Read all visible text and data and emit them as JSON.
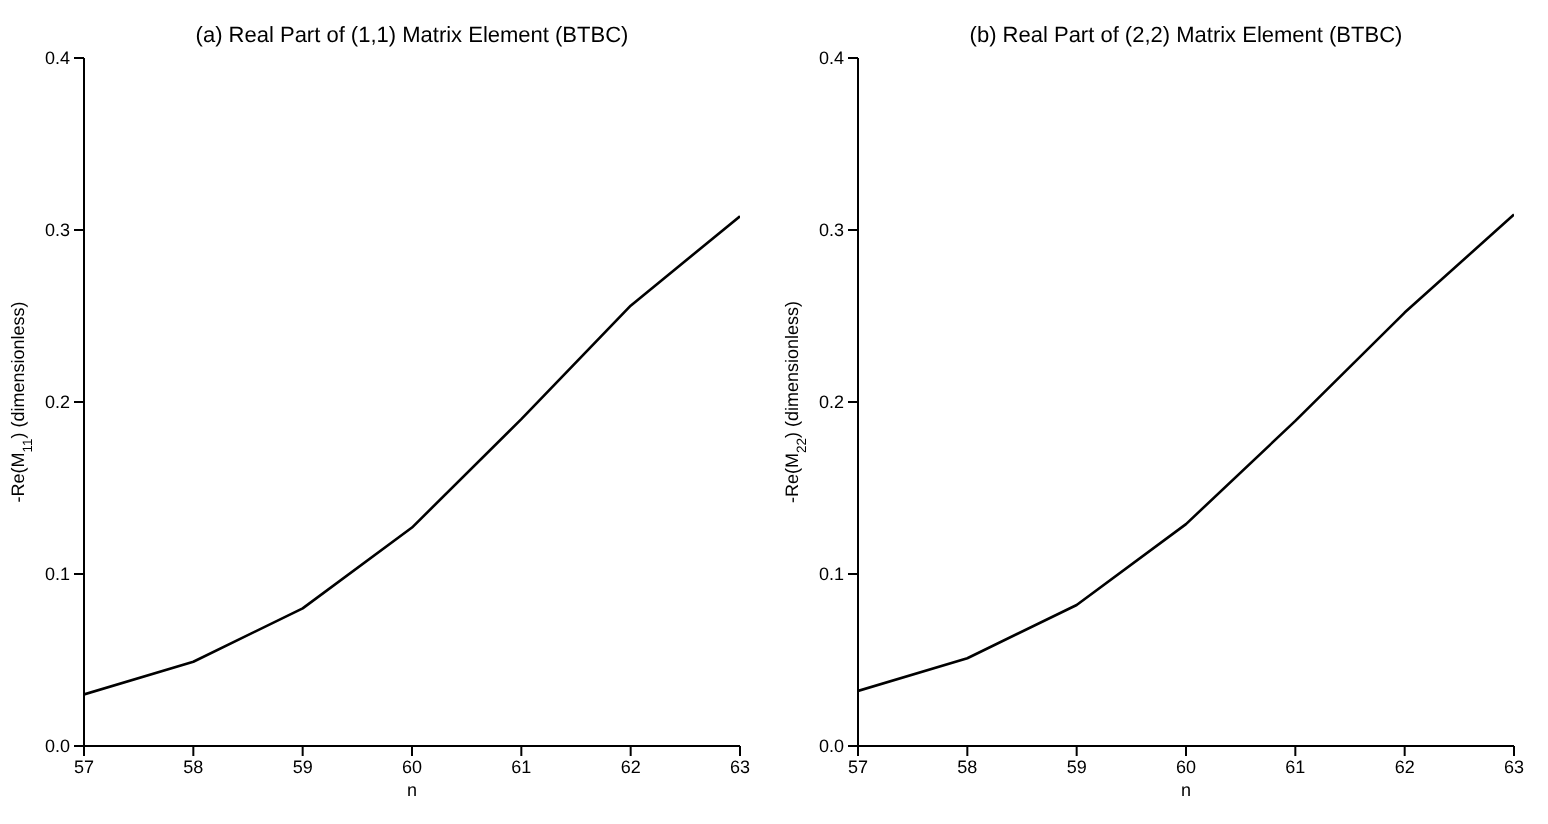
{
  "chart_data": [
    {
      "type": "line",
      "title": "(a) Real Part of (1,1) Matrix Element (BTBC)",
      "xlabel": "n",
      "ylabel": "-Re(M$_{11}$) (dimensionless)",
      "color": "#000000",
      "x": [
        57,
        58,
        59,
        60,
        61,
        62,
        63
      ],
      "values": [
        0.03,
        0.049,
        0.08,
        0.127,
        0.19,
        0.256,
        0.308
      ],
      "xlim": [
        57,
        63
      ],
      "xticks": [
        57,
        58,
        59,
        60,
        61,
        62,
        63
      ],
      "ylim": [
        0,
        0.4
      ],
      "yticks": [
        {
          "value": 0,
          "label": "0.0"
        },
        0.1,
        0.2,
        0.3,
        0.4
      ]
    },
    {
      "type": "line",
      "title": "(b) Real Part of (2,2) Matrix Element (BTBC)",
      "xlabel": "n",
      "ylabel": "-Re(M$_{22}$) (dimensionless)",
      "color": "#000000",
      "x": [
        57,
        58,
        59,
        60,
        61,
        62,
        63
      ],
      "values": [
        0.032,
        0.051,
        0.082,
        0.129,
        0.189,
        0.252,
        0.309
      ],
      "xlim": [
        57,
        63
      ],
      "xticks": [
        57,
        58,
        59,
        60,
        61,
        62,
        63
      ],
      "ylim": [
        0,
        0.4
      ],
      "yticks": [
        {
          "value": 0,
          "label": "0.0"
        },
        0.1,
        0.2,
        0.3,
        0.4
      ]
    }
  ]
}
